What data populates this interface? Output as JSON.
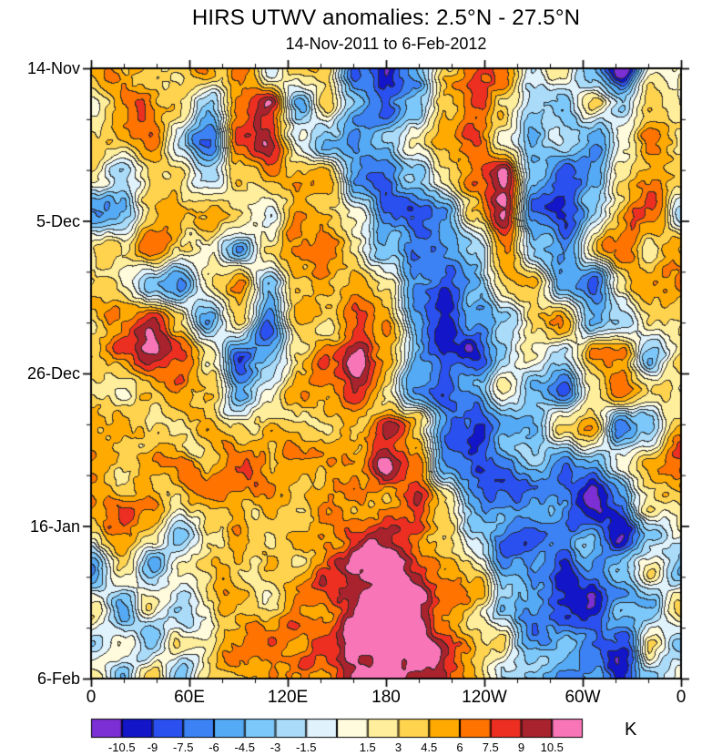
{
  "title": "HIRS UTWV anomalies: 2.5°N - 27.5°N",
  "subtitle": "14-Nov-2011 to 6-Feb-2012",
  "chart_data": {
    "type": "heatmap",
    "title": "HIRS UTWV anomalies: 2.5°N - 27.5°N",
    "subtitle": "14-Nov-2011 to 6-Feb-2012",
    "x_axis": {
      "range_deg": [
        0,
        360
      ],
      "minor_step_deg": 20,
      "ticks": [
        {
          "lon": 0,
          "label": "0"
        },
        {
          "lon": 60,
          "label": "60E"
        },
        {
          "lon": 120,
          "label": "120E"
        },
        {
          "lon": 180,
          "label": "180"
        },
        {
          "lon": 240,
          "label": "120W"
        },
        {
          "lon": 300,
          "label": "60W"
        },
        {
          "lon": 360,
          "label": "0"
        }
      ]
    },
    "y_axis": {
      "range_days": [
        0,
        84
      ],
      "minor_step_days": 7,
      "ticks": [
        {
          "day": 0,
          "label": "14-Nov"
        },
        {
          "day": 21,
          "label": "5-Dec"
        },
        {
          "day": 42,
          "label": "26-Dec"
        },
        {
          "day": 63,
          "label": "16-Jan"
        },
        {
          "day": 84,
          "label": "6-Feb"
        }
      ]
    },
    "colorbar": {
      "unit": "K",
      "levels": [
        -10.5,
        -9,
        -7.5,
        -6,
        -4.5,
        -3,
        -1.5,
        0,
        1.5,
        3,
        4.5,
        6,
        7.5,
        9,
        10.5
      ],
      "tick_labels": [
        "-10.5",
        "-9",
        "-7.5",
        "-6",
        "-4.5",
        "-3",
        "-1.5",
        "1.5",
        "3",
        "4.5",
        "6",
        "7.5",
        "9",
        "10.5"
      ],
      "colors": [
        "#7b2fd4",
        "#1215c8",
        "#2a50f0",
        "#3c82f5",
        "#55aaf5",
        "#7cc8fa",
        "#aadcfa",
        "#e0f2fc",
        "#fffbdc",
        "#ffee9b",
        "#ffd34e",
        "#ffaa00",
        "#ff7300",
        "#ed2f21",
        "#a8232d",
        "#f876b8"
      ]
    },
    "grid": {
      "cols": 21,
      "rows": 18,
      "lon_range": [
        0,
        360
      ],
      "day_range": [
        0,
        84
      ]
    },
    "values": [
      [
        4,
        6,
        2,
        1,
        5,
        7,
        -2,
        2,
        5,
        -7,
        -9,
        -6,
        3,
        7,
        8,
        -2,
        3,
        -4,
        -11,
        4,
        4
      ],
      [
        2,
        5,
        7,
        3,
        -6,
        4,
        8,
        -3,
        3,
        -5,
        -8,
        -4,
        5,
        8,
        4,
        -4,
        -6,
        2,
        -5,
        3,
        2
      ],
      [
        4,
        3,
        5,
        -2,
        -7,
        8,
        10,
        2,
        -4,
        -6,
        -3,
        2,
        6,
        9,
        3,
        -6,
        -3,
        -5,
        2,
        5,
        4
      ],
      [
        2,
        -4,
        3,
        4,
        -3,
        3,
        6,
        5,
        4,
        -5,
        -7,
        -3,
        3,
        8,
        10,
        -5,
        -8,
        -3,
        4,
        6,
        3
      ],
      [
        -5,
        -4,
        2,
        5,
        8,
        4,
        2,
        6,
        5,
        3,
        -6,
        -8,
        -4,
        2,
        11,
        -7,
        -9,
        -2,
        5,
        7,
        -4
      ],
      [
        3,
        5,
        6,
        3,
        2,
        -5,
        3,
        7,
        6,
        2,
        -4,
        -9,
        -7,
        -3,
        4,
        -3,
        -5,
        4,
        6,
        2,
        3
      ],
      [
        5,
        4,
        -3,
        -6,
        4,
        6,
        -4,
        3,
        5,
        6,
        3,
        -7,
        -10,
        -5,
        2,
        5,
        -6,
        -8,
        3,
        5,
        5
      ],
      [
        3,
        6,
        8,
        4,
        -5,
        3,
        -8,
        4,
        3,
        8,
        5,
        -5,
        -8,
        -6,
        -3,
        4,
        6,
        -5,
        -4,
        3,
        3
      ],
      [
        4,
        5,
        9,
        7,
        3,
        -9,
        -4,
        3,
        9,
        11,
        4,
        -4,
        -7,
        -9,
        -4,
        3,
        -3,
        5,
        4,
        -5,
        4
      ],
      [
        2,
        3,
        5,
        8,
        4,
        -4,
        3,
        6,
        5,
        8,
        3,
        -5,
        -9,
        -6,
        3,
        -4,
        -6,
        3,
        6,
        3,
        2
      ],
      [
        5,
        6,
        3,
        4,
        6,
        3,
        5,
        4,
        3,
        6,
        10,
        5,
        -6,
        -8,
        -4,
        -6,
        3,
        5,
        -7,
        -4,
        5
      ],
      [
        6,
        4,
        5,
        6,
        3,
        5,
        4,
        6,
        5,
        4,
        11,
        8,
        -4,
        -7,
        -6,
        -3,
        -8,
        -5,
        3,
        5,
        6
      ],
      [
        4,
        6,
        7,
        3,
        5,
        4,
        6,
        5,
        7,
        6,
        5,
        9,
        3,
        -5,
        -8,
        -6,
        -4,
        -9,
        -6,
        3,
        4
      ],
      [
        3,
        5,
        4,
        -4,
        3,
        6,
        5,
        7,
        6,
        8,
        9,
        7,
        5,
        -3,
        -6,
        -9,
        -7,
        -5,
        -10,
        -4,
        3
      ],
      [
        -4,
        3,
        -5,
        3,
        5,
        4,
        6,
        5,
        8,
        10,
        12,
        9,
        6,
        3,
        -4,
        -7,
        -10,
        -6,
        -4,
        3,
        -4
      ],
      [
        3,
        -6,
        3,
        -3,
        4,
        6,
        3,
        6,
        7,
        11,
        13,
        11,
        8,
        4,
        -3,
        -5,
        -8,
        -11,
        -5,
        -4,
        3
      ],
      [
        -3,
        3,
        -4,
        4,
        3,
        5,
        6,
        5,
        9,
        12,
        13,
        12,
        9,
        5,
        3,
        -6,
        -4,
        -7,
        -9,
        3,
        -3
      ],
      [
        2,
        -4,
        3,
        -5,
        4,
        3,
        5,
        7,
        8,
        11,
        12,
        10,
        7,
        4,
        -3,
        -4,
        -6,
        -5,
        -8,
        -4,
        2
      ]
    ]
  }
}
